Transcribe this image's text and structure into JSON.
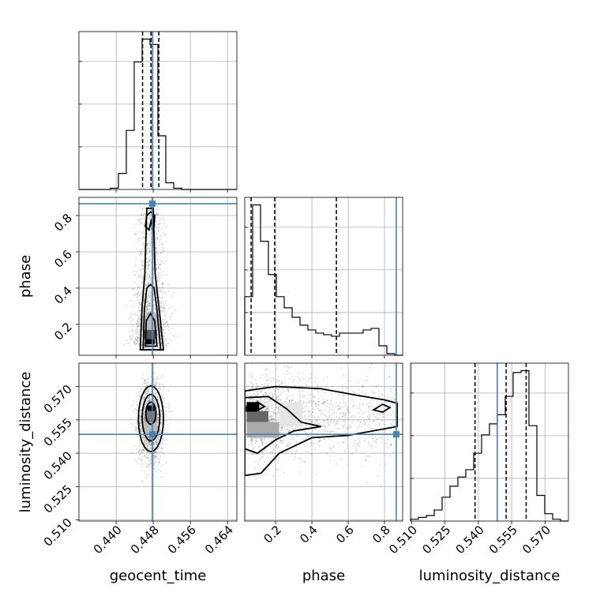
{
  "chart_data": {
    "type": "corner",
    "parameters": [
      {
        "name": "geocent_time",
        "label": "geocent_time",
        "range": [
          0.432,
          0.466
        ],
        "ticks": [
          "0.440",
          "0.448",
          "0.456",
          "0.464"
        ],
        "truth": 0.4478,
        "quantiles": [
          0.4457,
          0.4475,
          0.4492
        ]
      },
      {
        "name": "phase",
        "label": "phase",
        "range": [
          0.03,
          0.9
        ],
        "ticks": [
          "0.2",
          "0.4",
          "0.6",
          "0.8"
        ],
        "truth": 0.865,
        "quantiles": [
          0.065,
          0.195,
          0.535
        ]
      },
      {
        "name": "luminosity_distance",
        "label": "luminosity_distance",
        "range": [
          0.5095,
          0.5805
        ],
        "ticks": [
          "0.510",
          "0.525",
          "0.540",
          "0.555",
          "0.570"
        ],
        "truth": 0.5485,
        "quantiles": [
          0.5385,
          0.5525,
          0.5615
        ]
      }
    ],
    "histograms": {
      "geocent_time": {
        "edges": [
          0.432,
          0.4337,
          0.4354,
          0.4371,
          0.4388,
          0.4405,
          0.4422,
          0.4439,
          0.4456,
          0.4473,
          0.449,
          0.4507,
          0.4524,
          0.4541,
          0.4558,
          0.4575,
          0.4592,
          0.4609,
          0.4626,
          0.4643,
          0.466
        ],
        "counts": [
          0,
          0,
          0,
          0,
          1,
          12,
          44,
          95,
          112,
          108,
          40,
          5,
          1,
          0,
          0,
          0,
          0,
          0,
          0,
          0
        ]
      },
      "phase": {
        "edges": [
          0.03,
          0.0735,
          0.117,
          0.1605,
          0.204,
          0.2475,
          0.291,
          0.3345,
          0.378,
          0.4215,
          0.465,
          0.5085,
          0.552,
          0.5955,
          0.639,
          0.6825,
          0.726,
          0.7695,
          0.813,
          0.8565,
          0.9
        ],
        "counts": [
          37,
          95,
          72,
          51,
          37,
          30,
          24,
          19,
          16,
          14,
          13,
          12,
          14,
          14,
          14,
          16,
          17,
          6,
          1,
          0
        ]
      },
      "luminosity_distance": {
        "edges": [
          0.5095,
          0.51305,
          0.5166,
          0.52015,
          0.5237,
          0.52725,
          0.5308,
          0.53435,
          0.5379,
          0.54145,
          0.545,
          0.54855,
          0.5521,
          0.55565,
          0.5592,
          0.56275,
          0.5663,
          0.56985,
          0.5734,
          0.57695,
          0.5805
        ],
        "counts": [
          1,
          2,
          3,
          6,
          13,
          19,
          24,
          28,
          37,
          47,
          53,
          58,
          68,
          81,
          82,
          52,
          14,
          4,
          1,
          0
        ]
      }
    },
    "axis_labels": {
      "x": [
        "geocent_time",
        "phase",
        "luminosity_distance"
      ],
      "y": [
        "phase",
        "luminosity_distance"
      ]
    },
    "grid": true,
    "colors": {
      "truth": "#4682b4",
      "histogram": "#000000",
      "density": "#000000"
    }
  }
}
